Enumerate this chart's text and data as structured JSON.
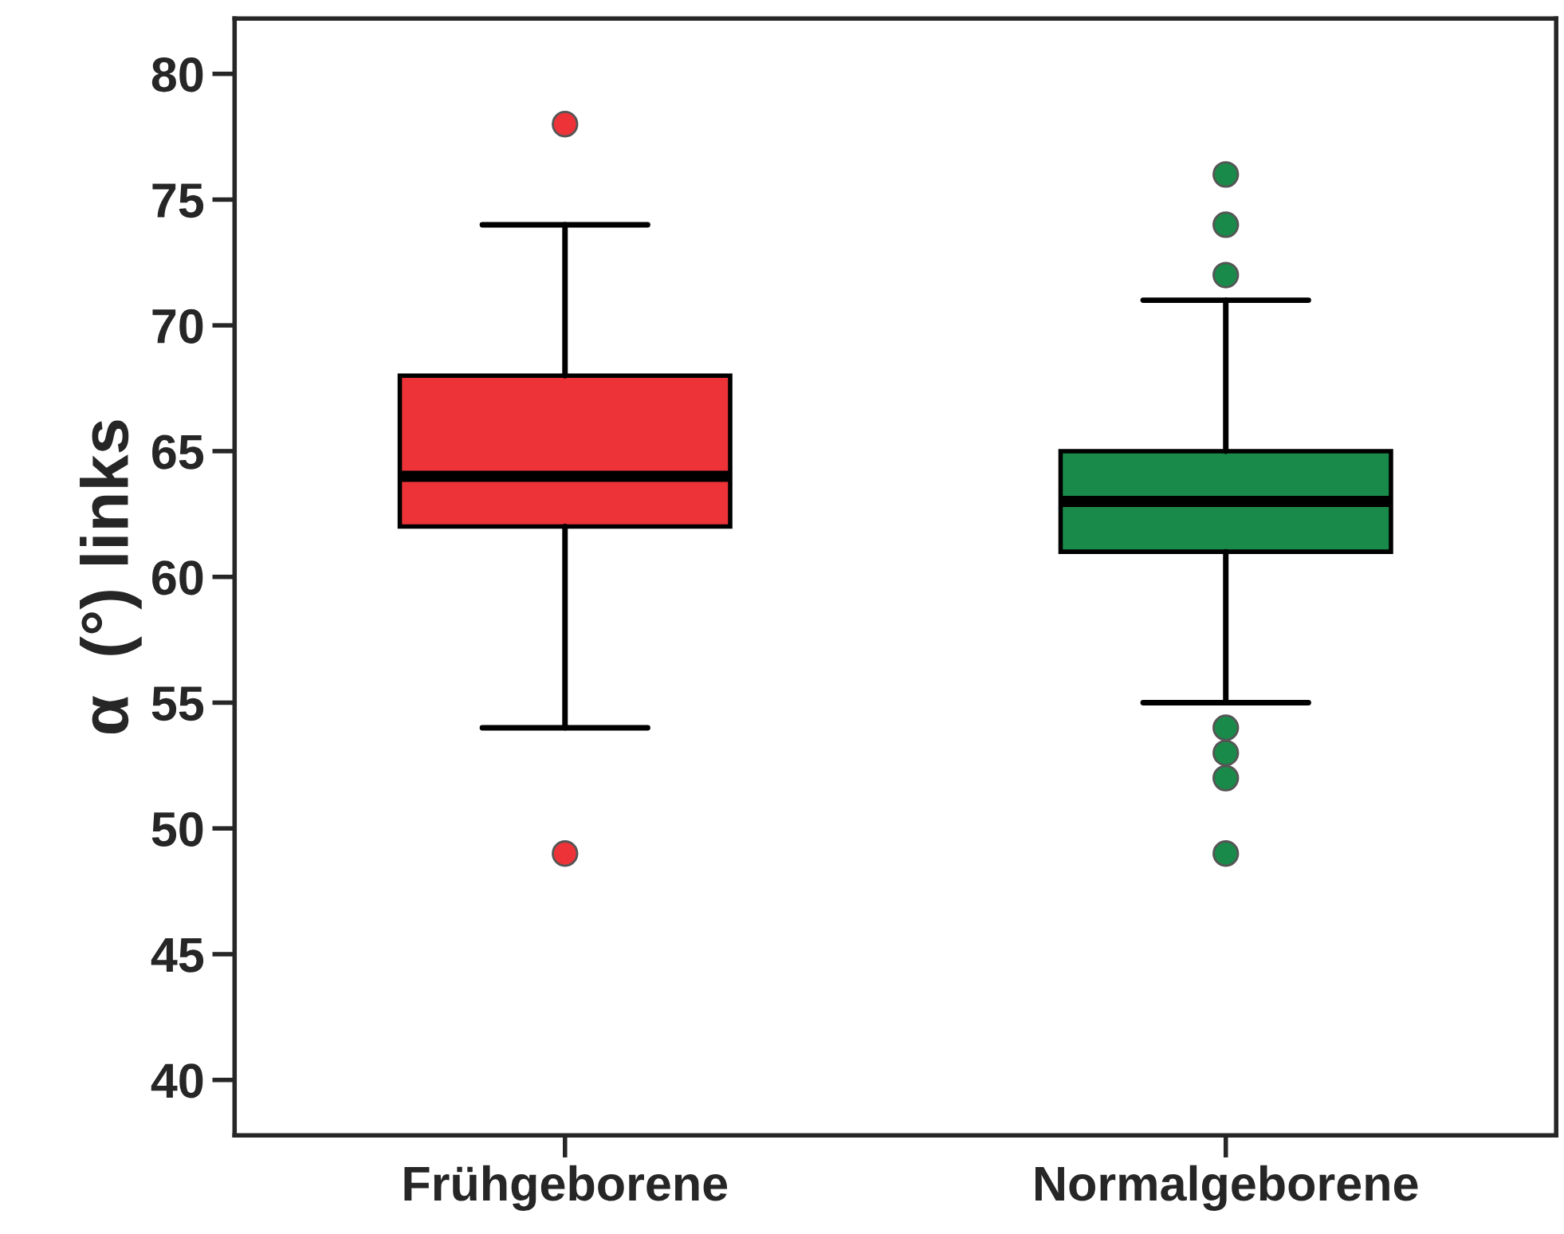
{
  "chart_data": {
    "type": "box",
    "ylabel": "α  (°) links",
    "categories": [
      "Frühgeborene",
      "Normalgeborene"
    ],
    "colors": [
      "#ee3338",
      "#1a8a4a"
    ],
    "boxes": [
      {
        "low": 54,
        "q1": 62,
        "median": 64,
        "q3": 68,
        "high": 74,
        "outliers": [
          78,
          49
        ]
      },
      {
        "low": 55,
        "q1": 61,
        "median": 63,
        "q3": 65,
        "high": 71,
        "outliers": [
          76,
          74,
          72,
          54,
          53,
          52,
          49
        ]
      }
    ],
    "ylim": [
      37.8,
      82.2
    ],
    "yticks": [
      40,
      45,
      50,
      55,
      60,
      65,
      70,
      75,
      80
    ]
  }
}
